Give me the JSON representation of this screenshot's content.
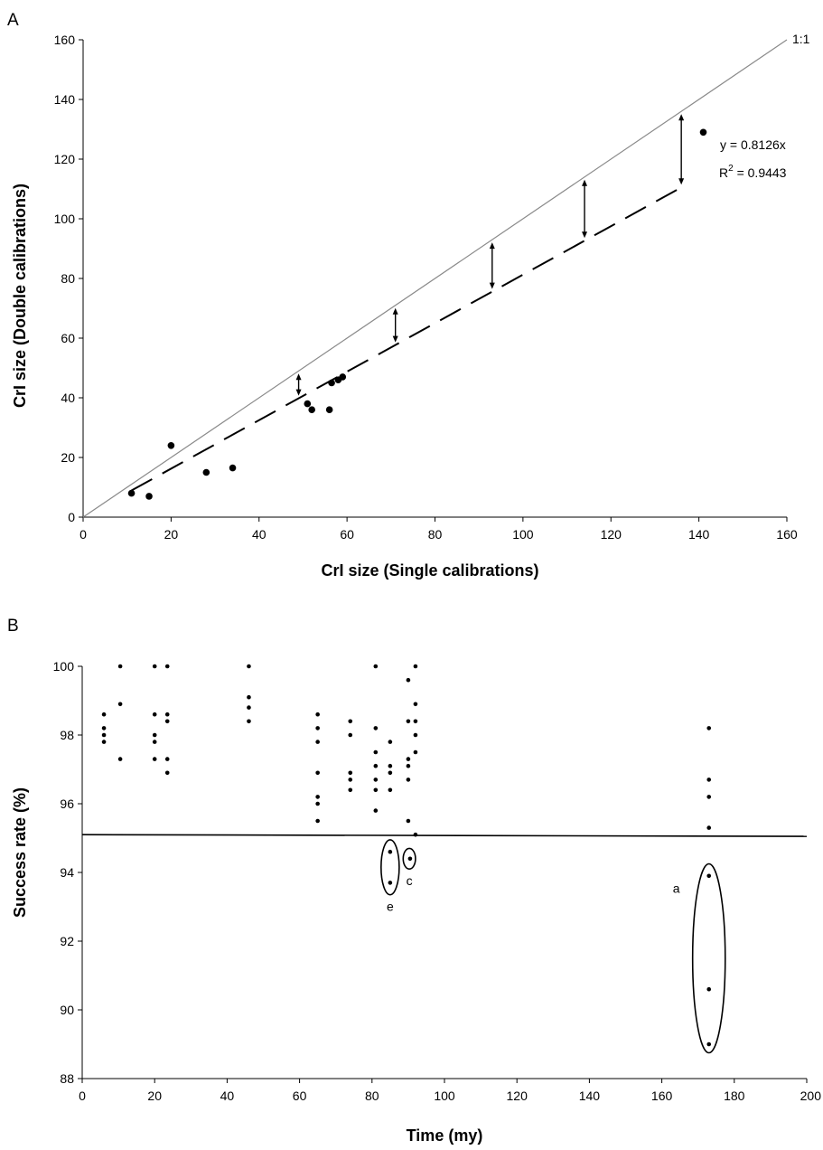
{
  "chart_data": [
    {
      "panel": "A",
      "type": "scatter",
      "xlabel": "CrI size (Single calibrations)",
      "ylabel": "CrI size  (Double calibrations)",
      "xlim": [
        0,
        160
      ],
      "ylim": [
        0,
        160
      ],
      "xticks": [
        "0",
        "20",
        "40",
        "60",
        "80",
        "100",
        "120",
        "140",
        "160"
      ],
      "yticks": [
        "0",
        "20",
        "40",
        "60",
        "80",
        "100",
        "120",
        "140",
        "160"
      ],
      "points": [
        {
          "x": 11,
          "y": 8
        },
        {
          "x": 15,
          "y": 7
        },
        {
          "x": 20,
          "y": 24
        },
        {
          "x": 28,
          "y": 15
        },
        {
          "x": 34,
          "y": 16.5
        },
        {
          "x": 51,
          "y": 38
        },
        {
          "x": 52,
          "y": 36
        },
        {
          "x": 56,
          "y": 36
        },
        {
          "x": 56.5,
          "y": 45
        },
        {
          "x": 58,
          "y": 46
        },
        {
          "x": 59,
          "y": 47
        },
        {
          "x": 141,
          "y": 129
        }
      ],
      "reference_line": {
        "label": "1:1",
        "slope": 1
      },
      "fit_line": {
        "slope": 0.8126,
        "style": "dashed",
        "x_start": 11,
        "x_end": 135
      },
      "arrows_at_x": [
        49,
        71,
        93,
        114,
        136
      ],
      "equation_line1": "y = 0.8126x",
      "equation_r2_prefix": "R",
      "equation_r2_exponent": "2",
      "equation_r2_value": " = 0.9443",
      "grid": false,
      "legend": "none"
    },
    {
      "panel": "B",
      "type": "scatter",
      "xlabel": "Time (my)",
      "ylabel": "Success rate (%)",
      "xlim": [
        0,
        200
      ],
      "ylim": [
        88,
        100
      ],
      "xticks": [
        "0",
        "20",
        "40",
        "60",
        "80",
        "100",
        "120",
        "140",
        "160",
        "180",
        "200"
      ],
      "yticks": [
        "88",
        "90",
        "92",
        "94",
        "96",
        "98",
        "100"
      ],
      "threshold": {
        "y_start": 95.1,
        "y_end": 95.05
      },
      "points": [
        {
          "x": 6,
          "y": 98.6
        },
        {
          "x": 6,
          "y": 98.2
        },
        {
          "x": 6,
          "y": 98.0
        },
        {
          "x": 6,
          "y": 97.8
        },
        {
          "x": 10.5,
          "y": 100
        },
        {
          "x": 10.5,
          "y": 98.9
        },
        {
          "x": 10.5,
          "y": 97.3
        },
        {
          "x": 20,
          "y": 100
        },
        {
          "x": 20,
          "y": 98.6
        },
        {
          "x": 20,
          "y": 98.0
        },
        {
          "x": 20,
          "y": 97.8
        },
        {
          "x": 20,
          "y": 97.3
        },
        {
          "x": 23.5,
          "y": 100
        },
        {
          "x": 23.5,
          "y": 98.6
        },
        {
          "x": 23.5,
          "y": 98.4
        },
        {
          "x": 23.5,
          "y": 97.3
        },
        {
          "x": 23.5,
          "y": 96.9
        },
        {
          "x": 46,
          "y": 100
        },
        {
          "x": 46,
          "y": 99.1
        },
        {
          "x": 46,
          "y": 98.8
        },
        {
          "x": 46,
          "y": 98.4
        },
        {
          "x": 65,
          "y": 98.6
        },
        {
          "x": 65,
          "y": 98.2
        },
        {
          "x": 65,
          "y": 97.8
        },
        {
          "x": 65,
          "y": 96.9
        },
        {
          "x": 65,
          "y": 96.2
        },
        {
          "x": 65,
          "y": 96.0
        },
        {
          "x": 65,
          "y": 95.5
        },
        {
          "x": 74,
          "y": 98.4
        },
        {
          "x": 74,
          "y": 98.0
        },
        {
          "x": 74,
          "y": 96.9
        },
        {
          "x": 74,
          "y": 96.7
        },
        {
          "x": 74,
          "y": 96.4
        },
        {
          "x": 81,
          "y": 100
        },
        {
          "x": 81,
          "y": 98.2
        },
        {
          "x": 81,
          "y": 97.5
        },
        {
          "x": 81,
          "y": 97.1
        },
        {
          "x": 81,
          "y": 96.7
        },
        {
          "x": 81,
          "y": 96.4
        },
        {
          "x": 81,
          "y": 95.8
        },
        {
          "x": 85,
          "y": 97.8
        },
        {
          "x": 85,
          "y": 97.1
        },
        {
          "x": 85,
          "y": 96.9
        },
        {
          "x": 85,
          "y": 96.4
        },
        {
          "x": 85,
          "y": 94.6
        },
        {
          "x": 85,
          "y": 93.7
        },
        {
          "x": 90,
          "y": 99.6
        },
        {
          "x": 90,
          "y": 98.4
        },
        {
          "x": 90,
          "y": 97.3
        },
        {
          "x": 90,
          "y": 97.1
        },
        {
          "x": 90,
          "y": 96.7
        },
        {
          "x": 90,
          "y": 95.5
        },
        {
          "x": 90.5,
          "y": 94.4
        },
        {
          "x": 92,
          "y": 100
        },
        {
          "x": 92,
          "y": 98.9
        },
        {
          "x": 92,
          "y": 98.4
        },
        {
          "x": 92,
          "y": 98.0
        },
        {
          "x": 92,
          "y": 97.5
        },
        {
          "x": 92,
          "y": 95.1
        },
        {
          "x": 173,
          "y": 98.2
        },
        {
          "x": 173,
          "y": 96.7
        },
        {
          "x": 173,
          "y": 96.2
        },
        {
          "x": 173,
          "y": 95.3
        },
        {
          "x": 173,
          "y": 93.9
        },
        {
          "x": 173,
          "y": 90.6
        },
        {
          "x": 173,
          "y": 89.0
        }
      ],
      "ellipses": [
        {
          "label": "e",
          "cx": 85,
          "cy": 94.15,
          "rx": 2.5,
          "ry": 0.8
        },
        {
          "label": "c",
          "cx": 90.3,
          "cy": 94.4,
          "rx": 1.7,
          "ry": 0.3
        },
        {
          "label": "a",
          "cx": 173,
          "cy": 91.5,
          "rx": 4.5,
          "ry": 2.75
        }
      ],
      "grid": false,
      "legend": "none"
    }
  ]
}
